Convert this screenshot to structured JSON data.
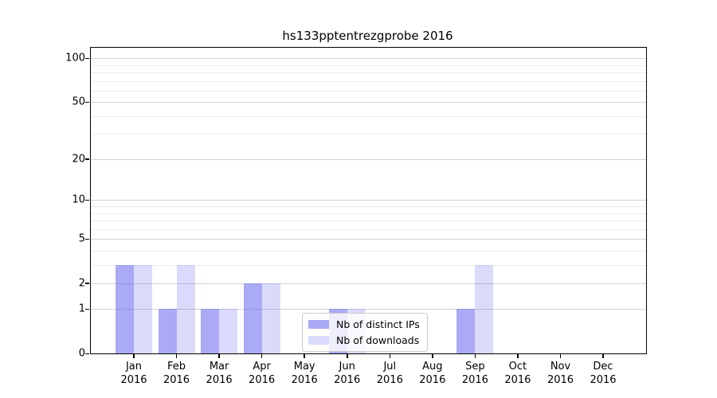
{
  "chart_data": {
    "type": "bar",
    "title": "hs133pptentrezgprobe 2016",
    "categories": [
      "Jan",
      "Feb",
      "Mar",
      "Apr",
      "May",
      "Jun",
      "Jul",
      "Aug",
      "Sep",
      "Oct",
      "Nov",
      "Dec"
    ],
    "year_label": "2016",
    "series": [
      {
        "name": "Nb of distinct IPs",
        "values": [
          3,
          1,
          1,
          2,
          0,
          1,
          0,
          0,
          1,
          0,
          0,
          0
        ],
        "color": "rgba(85,85,238,0.50)"
      },
      {
        "name": "Nb of downloads",
        "values": [
          3,
          3,
          1,
          2,
          0,
          1,
          0,
          0,
          3,
          0,
          0,
          0
        ],
        "color": "rgba(85,85,238,0.22)"
      }
    ],
    "yticks_major": [
      0,
      1,
      2,
      5,
      10,
      20,
      50,
      100
    ],
    "yticks_minor": [
      3,
      4,
      6,
      7,
      8,
      9,
      30,
      40,
      60,
      70,
      80,
      90
    ],
    "ylim": [
      0,
      107
    ],
    "y_scale": "log1p",
    "grid": "on",
    "legend_position": "lower center-left inside plot",
    "colors": {
      "major_grid": "#d3d3d3",
      "minor_grid": "#ececec",
      "axis": "#000000"
    }
  }
}
